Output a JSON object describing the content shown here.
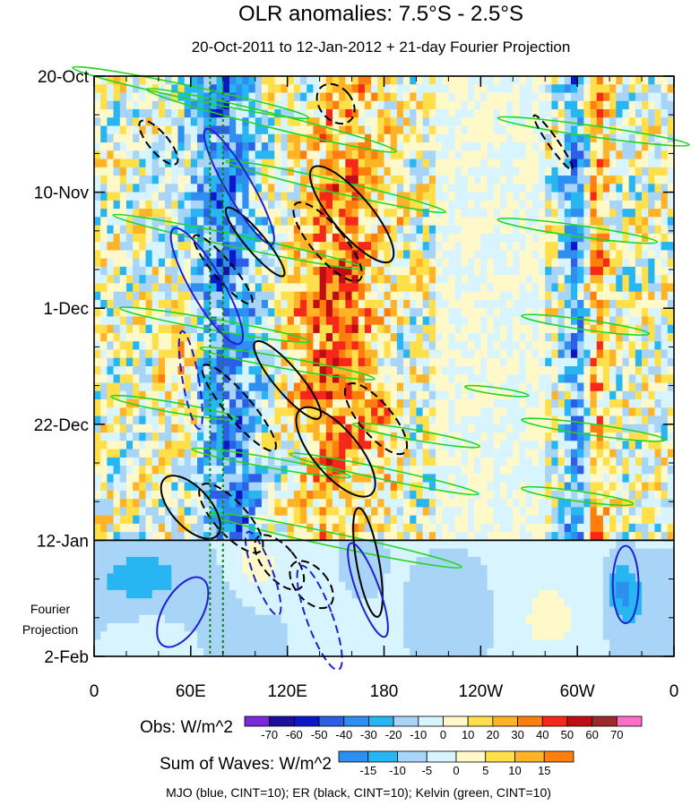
{
  "chart_data": {
    "type": "heatmap",
    "title": "OLR anomalies: 7.5°S - 2.5°S",
    "subtitle": "20-Oct-2011 to 12-Jan-2012 + 21-day Fourier Projection",
    "x_tick_labels": [
      "0",
      "60E",
      "120E",
      "180",
      "120W",
      "60W",
      "0"
    ],
    "x_ticks_deg": [
      0,
      60,
      120,
      180,
      240,
      300,
      360
    ],
    "x_range_deg": [
      0,
      360
    ],
    "y_tick_labels": [
      "20-Oct",
      "10-Nov",
      "1-Dec",
      "22-Dec",
      "12-Jan",
      "2-Feb"
    ],
    "y_ticks_day": [
      0,
      21,
      42,
      63,
      84,
      105
    ],
    "y_range_day": [
      0,
      105
    ],
    "observation_end_day": 84,
    "projection_label_lines": [
      "Fourier",
      "Projection"
    ],
    "obs_colorbar": {
      "label": "Obs: W/m^2",
      "levels": [
        -70,
        -60,
        -50,
        -40,
        -30,
        -20,
        -10,
        0,
        10,
        20,
        30,
        40,
        50,
        60,
        70
      ],
      "colors": [
        "#7a28d8",
        "#1b0f9c",
        "#0a18c8",
        "#2c5fe6",
        "#2f8ff0",
        "#27b6f2",
        "#a8d4f8",
        "#d8f4ff",
        "#fff8c8",
        "#ffe04a",
        "#ffb427",
        "#ff7f0e",
        "#f5281a",
        "#c00d14",
        "#9c2a2a",
        "#ff6ec7"
      ]
    },
    "waves_colorbar": {
      "label": "Sum of Waves: W/m^2",
      "levels": [
        -15,
        -10,
        -5,
        0,
        5,
        10,
        15
      ],
      "colors": [
        "#2f8ff0",
        "#27b6f2",
        "#a8d4f8",
        "#d8f4ff",
        "#fff8c8",
        "#ffe04a",
        "#ffb427",
        "#ff7f0e"
      ]
    },
    "contour_legend": "MJO (blue, CINT=10); ER (black, CINT=10); Kelvin (green, CINT=10)",
    "series": [
      {
        "name": "MJO",
        "color": "#2020d0"
      },
      {
        "name": "ER",
        "color": "#000000"
      },
      {
        "name": "Kelvin",
        "color": "#22d622"
      }
    ],
    "reference_lines_deg": [
      72,
      80
    ]
  }
}
